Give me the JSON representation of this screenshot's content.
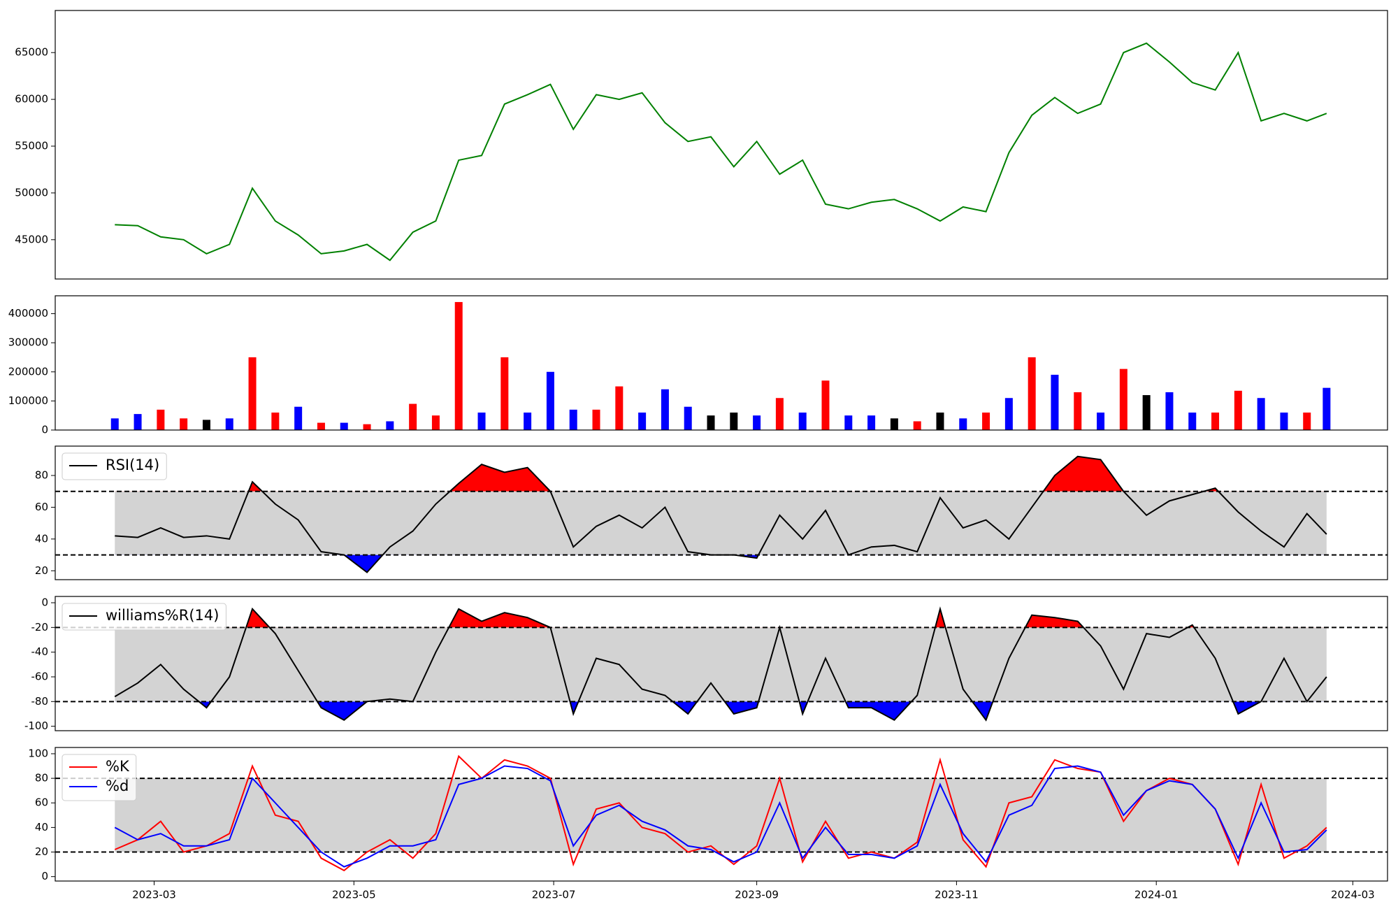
{
  "chart_data": [
    {
      "type": "line",
      "x": [
        -12,
        -5,
        2,
        9,
        16,
        23,
        30,
        37,
        44,
        51,
        58,
        65,
        72,
        79,
        86,
        93,
        100,
        107,
        114,
        121,
        128,
        135,
        142,
        149,
        156,
        163,
        170,
        177,
        184,
        191,
        198,
        205,
        212,
        219,
        226,
        233,
        240,
        247,
        254,
        261,
        268,
        275,
        282,
        289,
        296,
        303,
        310,
        317,
        324,
        331,
        338,
        345,
        352,
        358
      ],
      "xlim": [
        -30.2,
        376.6
      ],
      "series": [
        {
          "color": "#008000",
          "values": [
            46600,
            46500,
            45300,
            45000,
            43500,
            44500,
            50500,
            47000,
            45500,
            43500,
            43800,
            44500,
            42800,
            45800,
            47000,
            53500,
            54000,
            59500,
            60500,
            61600,
            56800,
            60500,
            60000,
            60700,
            57500,
            55500,
            56000,
            52800,
            55500,
            52000,
            53500,
            48800,
            48300,
            49000,
            49300,
            48300,
            47000,
            48500,
            48000,
            54300,
            58300,
            60200,
            58500,
            59500,
            65000,
            66000,
            64000,
            61800,
            61000,
            65000,
            57700,
            58500,
            57700,
            58500
          ]
        }
      ],
      "ylim": [
        40800,
        69500
      ],
      "yticks": [
        45000,
        50000,
        55000,
        60000,
        65000
      ]
    },
    {
      "type": "bar",
      "x": [
        -12,
        -5,
        2,
        9,
        16,
        23,
        30,
        37,
        44,
        51,
        58,
        65,
        72,
        79,
        86,
        93,
        100,
        107,
        114,
        121,
        128,
        135,
        142,
        149,
        156,
        163,
        170,
        177,
        184,
        191,
        198,
        205,
        212,
        219,
        226,
        233,
        240,
        247,
        254,
        261,
        268,
        275,
        282,
        289,
        296,
        303,
        310,
        317,
        324,
        331,
        338,
        345,
        352,
        358
      ],
      "xlim": [
        -30.2,
        376.6
      ],
      "values": [
        40000,
        55000,
        70000,
        40000,
        35000,
        40000,
        250000,
        60000,
        80000,
        25000,
        25000,
        20000,
        30000,
        90000,
        50000,
        440000,
        60000,
        250000,
        60000,
        200000,
        70000,
        70000,
        150000,
        60000,
        140000,
        80000,
        50000,
        60000,
        50000,
        110000,
        60000,
        170000,
        50000,
        50000,
        40000,
        30000,
        60000,
        40000,
        60000,
        110000,
        250000,
        190000,
        130000,
        60000,
        210000,
        120000,
        130000,
        60000,
        60000,
        135000,
        110000,
        60000,
        60000,
        145000
      ],
      "colors": [
        "#0000ff",
        "#0000ff",
        "#ff0000",
        "#ff0000",
        "#000000",
        "#0000ff",
        "#ff0000",
        "#ff0000",
        "#0000ff",
        "#ff0000",
        "#0000ff",
        "#ff0000",
        "#0000ff",
        "#ff0000",
        "#ff0000",
        "#ff0000",
        "#0000ff",
        "#ff0000",
        "#0000ff",
        "#0000ff",
        "#0000ff",
        "#ff0000",
        "#ff0000",
        "#0000ff",
        "#0000ff",
        "#0000ff",
        "#000000",
        "#000000",
        "#0000ff",
        "#ff0000",
        "#0000ff",
        "#ff0000",
        "#0000ff",
        "#0000ff",
        "#000000",
        "#ff0000",
        "#000000",
        "#0000ff",
        "#ff0000",
        "#0000ff",
        "#ff0000",
        "#0000ff",
        "#ff0000",
        "#0000ff",
        "#ff0000",
        "#000000",
        "#0000ff",
        "#0000ff",
        "#ff0000",
        "#ff0000",
        "#0000ff",
        "#0000ff",
        "#ff0000",
        "#0000ff"
      ],
      "ylim": [
        0,
        461500
      ],
      "yticks": [
        0,
        100000,
        200000,
        300000,
        400000
      ]
    },
    {
      "type": "line",
      "x": [
        -12,
        -5,
        2,
        9,
        16,
        23,
        30,
        37,
        44,
        51,
        58,
        65,
        72,
        79,
        86,
        93,
        100,
        107,
        114,
        121,
        128,
        135,
        142,
        149,
        156,
        163,
        170,
        177,
        184,
        191,
        198,
        205,
        212,
        219,
        226,
        233,
        240,
        247,
        254,
        261,
        268,
        275,
        282,
        289,
        296,
        303,
        310,
        317,
        324,
        331,
        338,
        345,
        352,
        358
      ],
      "xlim": [
        -30.2,
        376.6
      ],
      "series": [
        {
          "name": "RSI(14)",
          "color": "#000000",
          "values": [
            42,
            41,
            47,
            41,
            42,
            40,
            76,
            62,
            52,
            32,
            30,
            19,
            35,
            45,
            62,
            75,
            87,
            82,
            85,
            70,
            35,
            48,
            55,
            47,
            60,
            32,
            30,
            30,
            28,
            55,
            40,
            58,
            30,
            35,
            36,
            32,
            66,
            47,
            52,
            40,
            60,
            80,
            92,
            90,
            70,
            55,
            64,
            68,
            72,
            57,
            45,
            35,
            56,
            43
          ]
        }
      ],
      "legend": "upper left",
      "thresholds": {
        "upper": 70,
        "lower": 30
      },
      "band_color": "#d3d3d3",
      "above_color": "#ff0000",
      "below_color": "#0000ff",
      "ylim": [
        14.4,
        98.5
      ],
      "yticks": [
        20,
        40,
        60,
        80
      ]
    },
    {
      "type": "line",
      "x": [
        -12,
        -5,
        2,
        9,
        16,
        23,
        30,
        37,
        44,
        51,
        58,
        65,
        72,
        79,
        86,
        93,
        100,
        107,
        114,
        121,
        128,
        135,
        142,
        149,
        156,
        163,
        170,
        177,
        184,
        191,
        198,
        205,
        212,
        219,
        226,
        233,
        240,
        247,
        254,
        261,
        268,
        275,
        282,
        289,
        296,
        303,
        310,
        317,
        324,
        331,
        338,
        345,
        352,
        358
      ],
      "xlim": [
        -30.2,
        376.6
      ],
      "series": [
        {
          "name": "williams%R(14)",
          "color": "#000000",
          "values": [
            -76,
            -65,
            -50,
            -70,
            -85,
            -60,
            -5,
            -25,
            -55,
            -85,
            -95,
            -80,
            -78,
            -80,
            -40,
            -5,
            -15,
            -8,
            -12,
            -20,
            -90,
            -45,
            -50,
            -70,
            -75,
            -90,
            -65,
            -90,
            -85,
            -20,
            -90,
            -45,
            -85,
            -85,
            -95,
            -75,
            -5,
            -70,
            -95,
            -45,
            -10,
            -12,
            -15,
            -35,
            -70,
            -25,
            -28,
            -18,
            -45,
            -90,
            -80,
            -45,
            -80,
            -60
          ]
        }
      ],
      "legend": "upper left",
      "thresholds": {
        "upper": -20,
        "lower": -80
      },
      "band_color": "#d3d3d3",
      "above_color": "#ff0000",
      "below_color": "#0000ff",
      "ylim": [
        -103.6,
        5.1
      ],
      "yticks": [
        -100,
        -80,
        -60,
        -40,
        -20,
        0
      ]
    },
    {
      "type": "line",
      "x": [
        -12,
        -5,
        2,
        9,
        16,
        23,
        30,
        37,
        44,
        51,
        58,
        65,
        72,
        79,
        86,
        93,
        100,
        107,
        114,
        121,
        128,
        135,
        142,
        149,
        156,
        163,
        170,
        177,
        184,
        191,
        198,
        205,
        212,
        219,
        226,
        233,
        240,
        247,
        254,
        261,
        268,
        275,
        282,
        289,
        296,
        303,
        310,
        317,
        324,
        331,
        338,
        345,
        352,
        358
      ],
      "xlim": [
        -30.2,
        376.6
      ],
      "xticks": [
        {
          "value": 0,
          "label": "2023-03"
        },
        {
          "value": 61,
          "label": "2023-05"
        },
        {
          "value": 122,
          "label": "2023-07"
        },
        {
          "value": 184,
          "label": "2023-09"
        },
        {
          "value": 245,
          "label": "2023-11"
        },
        {
          "value": 306,
          "label": "2024-01"
        },
        {
          "value": 366,
          "label": "2024-03"
        }
      ],
      "series": [
        {
          "name": "%K",
          "color": "#ff0000",
          "values": [
            22,
            30,
            45,
            20,
            25,
            35,
            90,
            50,
            45,
            15,
            5,
            20,
            30,
            15,
            35,
            98,
            80,
            95,
            90,
            80,
            10,
            55,
            60,
            40,
            35,
            20,
            25,
            10,
            25,
            80,
            12,
            45,
            15,
            20,
            15,
            28,
            95,
            30,
            8,
            60,
            65,
            95,
            88,
            85,
            45,
            70,
            80,
            75,
            55,
            10,
            75,
            15,
            25,
            40
          ]
        },
        {
          "name": "%d",
          "color": "#0000ff",
          "values": [
            40,
            30,
            35,
            25,
            25,
            30,
            80,
            60,
            40,
            20,
            8,
            15,
            25,
            25,
            30,
            75,
            80,
            90,
            88,
            78,
            25,
            50,
            58,
            45,
            38,
            25,
            22,
            12,
            20,
            60,
            15,
            40,
            18,
            18,
            15,
            25,
            75,
            35,
            12,
            50,
            58,
            88,
            90,
            85,
            50,
            70,
            78,
            75,
            55,
            15,
            60,
            20,
            22,
            38
          ]
        }
      ],
      "legend": "upper left",
      "thresholds": {
        "upper": 80,
        "lower": 20
      },
      "band_color": "#d3d3d3",
      "ylim": [
        -3.6,
        105.1
      ],
      "yticks": [
        0,
        20,
        40,
        60,
        80,
        100
      ]
    }
  ]
}
